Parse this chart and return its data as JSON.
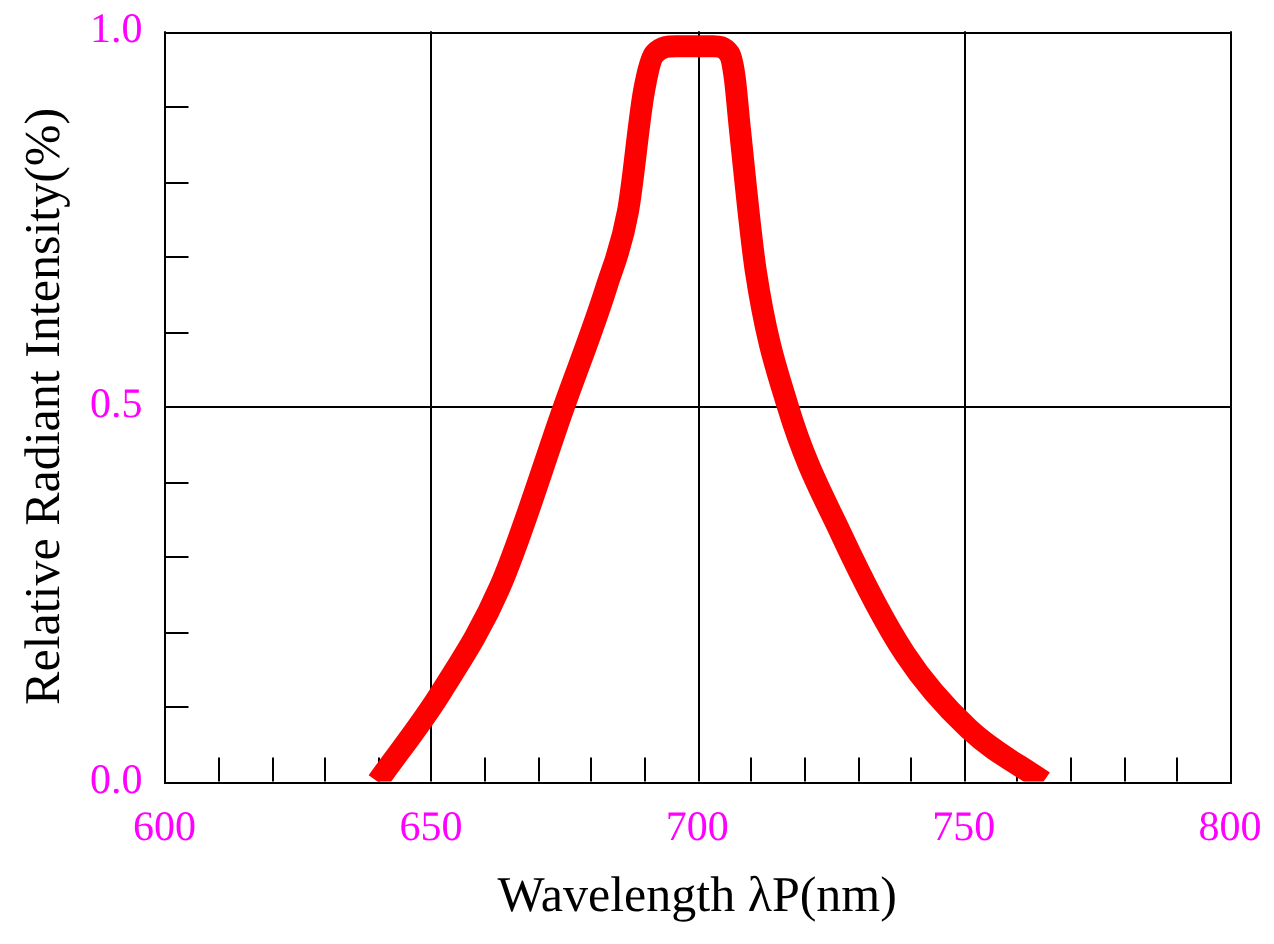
{
  "chart_data": {
    "type": "line",
    "xlabel": "Wavelength λP(nm)",
    "ylabel": "Relative Radiant Intensity(%)",
    "x": [
      640,
      652,
      663,
      675,
      683,
      687,
      690,
      692,
      696,
      699,
      703,
      706,
      707,
      708,
      711,
      717,
      727,
      739,
      751,
      765
    ],
    "series": [
      {
        "color": "#ff0000",
        "values": [
          0,
          0.12,
          0.26,
          0.5,
          0.66,
          0.76,
          0.92,
          0.97,
          0.98,
          0.98,
          0.98,
          0.97,
          0.94,
          0.87,
          0.68,
          0.5,
          0.33,
          0.17,
          0.07,
          0
        ]
      }
    ],
    "xlim": [
      600,
      800
    ],
    "ylim": [
      0,
      1
    ],
    "xticks": [
      600,
      {
        "value": 610,
        "label": null
      },
      {
        "value": 620,
        "label": null
      },
      {
        "value": 630,
        "label": null
      },
      {
        "value": 640,
        "label": null
      },
      650,
      {
        "value": 660,
        "label": null
      },
      {
        "value": 670,
        "label": null
      },
      {
        "value": 680,
        "label": null
      },
      {
        "value": 690,
        "label": null
      },
      700,
      {
        "value": 710,
        "label": null
      },
      {
        "value": 720,
        "label": null
      },
      {
        "value": 730,
        "label": null
      },
      {
        "value": 740,
        "label": null
      },
      750,
      {
        "value": 760,
        "label": null
      },
      {
        "value": 770,
        "label": null
      },
      {
        "value": 780,
        "label": null
      },
      {
        "value": 790,
        "label": null
      },
      800
    ],
    "yticks": [
      {
        "value": 0,
        "label": "0.0"
      },
      {
        "value": 0.1,
        "label": null
      },
      {
        "value": 0.2,
        "label": null
      },
      {
        "value": 0.3,
        "label": null
      },
      {
        "value": 0.4,
        "label": null
      },
      {
        "value": 0.5,
        "label": "0.5"
      },
      {
        "value": 0.6,
        "label": null
      },
      {
        "value": 0.7,
        "label": null
      },
      {
        "value": 0.8,
        "label": null
      },
      {
        "value": 0.9,
        "label": null
      },
      {
        "value": 1,
        "label": "1.0"
      }
    ],
    "grid": true,
    "marker": "none",
    "line_style": "solid",
    "legend": false
  }
}
